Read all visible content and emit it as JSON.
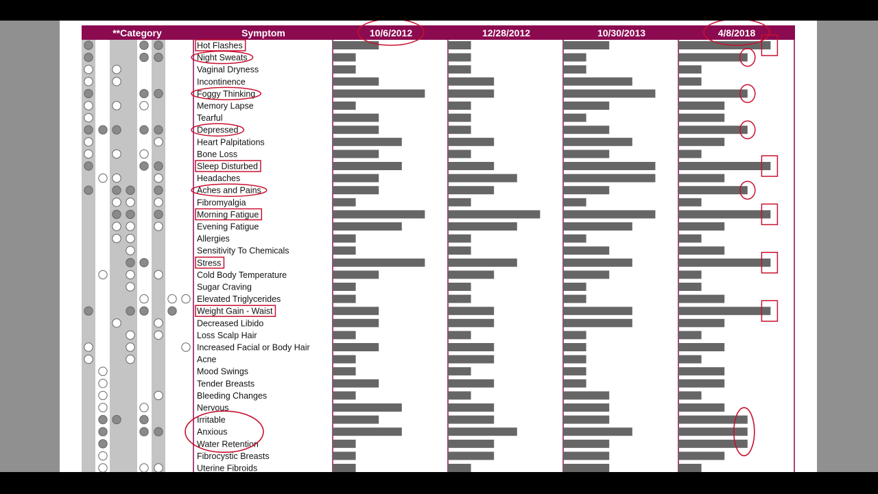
{
  "colors": {
    "header_bg": "#8b0a50",
    "bar": "#666666",
    "dot_filled": "#8a8a8a",
    "category_stripe": "#c4c4c4",
    "annotation": "#c8102e",
    "frame_line": "#8b0a50"
  },
  "chart_data": {
    "type": "bar",
    "title": "",
    "category_header": "**Category",
    "symptom_header": "Symptom",
    "dates": [
      "10/6/2012",
      "12/28/2012",
      "10/30/2013",
      "4/8/2018"
    ],
    "severity_scale": [
      0,
      4
    ],
    "categories": [
      "Hot Flashes",
      "Night Sweats",
      "Vaginal Dryness",
      "Incontinence",
      "Foggy Thinking",
      "Memory Lapse",
      "Tearful",
      "Depressed",
      "Heart Palpitations",
      "Bone Loss",
      "Sleep Disturbed",
      "Headaches",
      "Aches and Pains",
      "Fibromyalgia",
      "Morning Fatigue",
      "Evening Fatigue",
      "Allergies",
      "Sensitivity To Chemicals",
      "Stress",
      "Cold Body Temperature",
      "Sugar Craving",
      "Elevated Triglycerides",
      "Weight Gain - Waist",
      "Decreased Libido",
      "Loss Scalp Hair",
      "Increased Facial or Body Hair",
      "Acne",
      "Mood Swings",
      "Tender Breasts",
      "Bleeding Changes",
      "Nervous",
      "Irritable",
      "Anxious",
      "Water Retention",
      "Fibrocystic Breasts",
      "Uterine Fibroids"
    ],
    "series": [
      {
        "name": "10/6/2012",
        "values": [
          2,
          1,
          1,
          2,
          4,
          1,
          2,
          2,
          3,
          2,
          3,
          2,
          2,
          1,
          4,
          3,
          1,
          1,
          4,
          2,
          1,
          1,
          2,
          2,
          1,
          2,
          1,
          1,
          2,
          1,
          3,
          2,
          3,
          1,
          1,
          1
        ]
      },
      {
        "name": "12/28/2012",
        "values": [
          1,
          1,
          1,
          2,
          2,
          1,
          1,
          1,
          2,
          1,
          2,
          3,
          2,
          1,
          4,
          3,
          1,
          1,
          3,
          2,
          1,
          1,
          2,
          2,
          1,
          2,
          2,
          1,
          2,
          1,
          2,
          2,
          3,
          2,
          2,
          1
        ]
      },
      {
        "name": "10/30/2013",
        "values": [
          2,
          1,
          1,
          3,
          4,
          2,
          1,
          2,
          3,
          2,
          4,
          4,
          2,
          1,
          4,
          3,
          1,
          2,
          3,
          2,
          1,
          1,
          3,
          3,
          1,
          1,
          1,
          1,
          1,
          2,
          2,
          2,
          3,
          2,
          2,
          2
        ]
      },
      {
        "name": "4/8/2018",
        "values": [
          4,
          3,
          1,
          1,
          3,
          2,
          2,
          3,
          2,
          1,
          4,
          2,
          3,
          1,
          4,
          2,
          1,
          2,
          4,
          1,
          1,
          2,
          4,
          2,
          1,
          2,
          1,
          2,
          2,
          1,
          2,
          3,
          3,
          3,
          2,
          1
        ]
      }
    ],
    "category_columns": 8,
    "category_markers": [
      [
        "F",
        "N",
        "N",
        "N",
        "F",
        "F",
        "N",
        "N"
      ],
      [
        "F",
        "N",
        "N",
        "N",
        "F",
        "F",
        "N",
        "N"
      ],
      [
        "O",
        "N",
        "O",
        "N",
        "N",
        "N",
        "N",
        "N"
      ],
      [
        "O",
        "N",
        "O",
        "N",
        "N",
        "N",
        "N",
        "N"
      ],
      [
        "F",
        "N",
        "N",
        "N",
        "F",
        "F",
        "N",
        "N"
      ],
      [
        "O",
        "N",
        "O",
        "N",
        "O",
        "N",
        "N",
        "N"
      ],
      [
        "O",
        "N",
        "N",
        "N",
        "N",
        "N",
        "N",
        "N"
      ],
      [
        "F",
        "F",
        "F",
        "N",
        "F",
        "F",
        "N",
        "N"
      ],
      [
        "O",
        "N",
        "N",
        "N",
        "N",
        "O",
        "N",
        "N"
      ],
      [
        "O",
        "N",
        "O",
        "N",
        "O",
        "N",
        "N",
        "N"
      ],
      [
        "F",
        "N",
        "N",
        "N",
        "F",
        "F",
        "N",
        "N"
      ],
      [
        "N",
        "O",
        "O",
        "N",
        "N",
        "O",
        "N",
        "N"
      ],
      [
        "F",
        "N",
        "F",
        "F",
        "N",
        "F",
        "N",
        "N"
      ],
      [
        "N",
        "N",
        "O",
        "O",
        "N",
        "O",
        "N",
        "N"
      ],
      [
        "N",
        "N",
        "F",
        "F",
        "N",
        "F",
        "N",
        "N"
      ],
      [
        "N",
        "N",
        "O",
        "O",
        "N",
        "O",
        "N",
        "N"
      ],
      [
        "N",
        "N",
        "O",
        "O",
        "N",
        "N",
        "N",
        "N"
      ],
      [
        "N",
        "N",
        "N",
        "O",
        "N",
        "N",
        "N",
        "N"
      ],
      [
        "N",
        "N",
        "N",
        "F",
        "F",
        "N",
        "N",
        "N"
      ],
      [
        "N",
        "O",
        "N",
        "O",
        "N",
        "O",
        "N",
        "N"
      ],
      [
        "N",
        "N",
        "N",
        "O",
        "N",
        "N",
        "N",
        "N"
      ],
      [
        "N",
        "N",
        "N",
        "N",
        "O",
        "N",
        "O",
        "O"
      ],
      [
        "F",
        "N",
        "N",
        "F",
        "F",
        "N",
        "F",
        "N"
      ],
      [
        "N",
        "N",
        "O",
        "N",
        "N",
        "O",
        "N",
        "N"
      ],
      [
        "N",
        "N",
        "N",
        "O",
        "N",
        "O",
        "N",
        "N"
      ],
      [
        "O",
        "N",
        "N",
        "O",
        "N",
        "N",
        "N",
        "O"
      ],
      [
        "O",
        "N",
        "N",
        "O",
        "N",
        "N",
        "N",
        "N"
      ],
      [
        "N",
        "O",
        "N",
        "N",
        "N",
        "N",
        "N",
        "N"
      ],
      [
        "N",
        "O",
        "N",
        "N",
        "N",
        "N",
        "N",
        "N"
      ],
      [
        "N",
        "O",
        "N",
        "N",
        "N",
        "O",
        "N",
        "N"
      ],
      [
        "N",
        "O",
        "N",
        "N",
        "O",
        "N",
        "N",
        "N"
      ],
      [
        "N",
        "F",
        "F",
        "N",
        "F",
        "N",
        "N",
        "N"
      ],
      [
        "N",
        "F",
        "N",
        "N",
        "F",
        "F",
        "N",
        "N"
      ],
      [
        "N",
        "F",
        "N",
        "N",
        "N",
        "N",
        "N",
        "N"
      ],
      [
        "N",
        "O",
        "N",
        "N",
        "N",
        "N",
        "N",
        "N"
      ],
      [
        "N",
        "O",
        "N",
        "N",
        "O",
        "O",
        "N",
        "N"
      ]
    ],
    "annotations": {
      "circled_dates": [
        "10/6/2012",
        "4/8/2018"
      ],
      "circled_symptoms": [
        "Night Sweats",
        "Foggy Thinking",
        "Depressed",
        "Aches and Pains"
      ],
      "boxed_symptoms": [
        "Hot Flashes",
        "Sleep Disturbed",
        "Morning Fatigue",
        "Stress",
        "Weight Gain - Waist"
      ],
      "grouped_circle": [
        "Irritable",
        "Anxious",
        "Water Retention"
      ],
      "circled_bars_last_date": [
        "Night Sweats",
        "Foggy Thinking",
        "Depressed",
        "Aches and Pains"
      ],
      "boxed_bars_last_date": [
        "Hot Flashes",
        "Sleep Disturbed",
        "Morning Fatigue",
        "Stress",
        "Weight Gain - Waist"
      ],
      "grouped_bars_last_date": [
        "Irritable",
        "Anxious",
        "Water Retention"
      ]
    }
  }
}
